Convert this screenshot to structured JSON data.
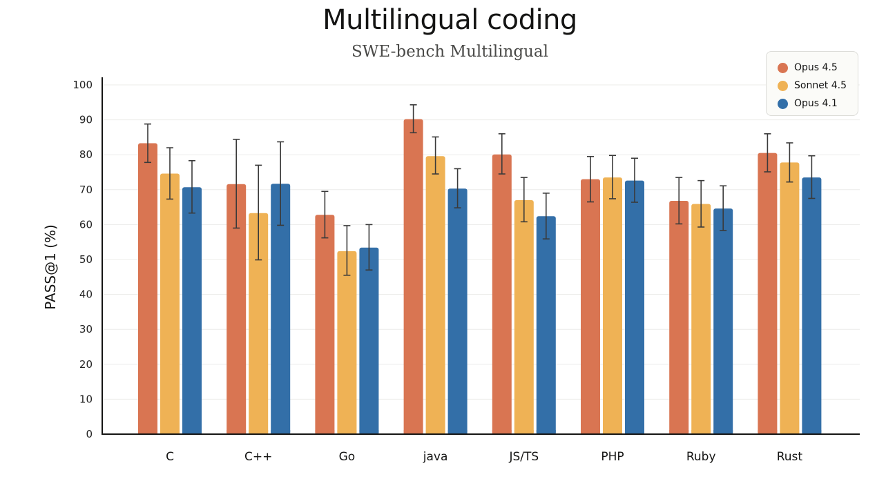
{
  "chart_data": {
    "type": "bar",
    "title": "Multilingual coding",
    "subtitle": "SWE-bench Multilingual",
    "xlabel": "",
    "ylabel": "PASS@1 (%)",
    "ylim": [
      0,
      100
    ],
    "yticks": [
      0,
      10,
      20,
      30,
      40,
      50,
      60,
      70,
      80,
      90,
      100
    ],
    "grid": true,
    "legend_position": "top-right",
    "categories": [
      "C",
      "C++",
      "Go",
      "java",
      "JS/TS",
      "PHP",
      "Ruby",
      "Rust"
    ],
    "series": [
      {
        "name": "Opus 4.5",
        "color": "#D97552",
        "values": [
          83.3,
          71.6,
          62.8,
          90.2,
          80.1,
          73.0,
          66.8,
          80.5
        ],
        "error_low": [
          77.8,
          59.0,
          56.2,
          86.3,
          74.5,
          66.5,
          60.2,
          75.1
        ],
        "error_high": [
          88.8,
          84.4,
          69.5,
          94.3,
          86.0,
          79.5,
          73.5,
          86.0
        ]
      },
      {
        "name": "Sonnet 4.5",
        "color": "#EFB255",
        "values": [
          74.6,
          63.3,
          52.4,
          79.6,
          67.0,
          73.5,
          65.9,
          77.8
        ],
        "error_low": [
          67.3,
          49.9,
          45.5,
          74.5,
          60.8,
          67.4,
          59.3,
          72.2
        ],
        "error_high": [
          82.0,
          77.0,
          59.7,
          85.1,
          73.5,
          79.8,
          72.6,
          83.4
        ]
      },
      {
        "name": "Opus 4.1",
        "color": "#336FA8",
        "values": [
          70.7,
          71.7,
          53.4,
          70.3,
          62.4,
          72.6,
          64.6,
          73.5
        ],
        "error_low": [
          63.3,
          59.8,
          47.0,
          64.8,
          55.9,
          66.4,
          58.3,
          67.5
        ],
        "error_high": [
          78.3,
          83.7,
          60.0,
          76.0,
          69.0,
          79.0,
          71.1,
          79.7
        ]
      }
    ]
  }
}
